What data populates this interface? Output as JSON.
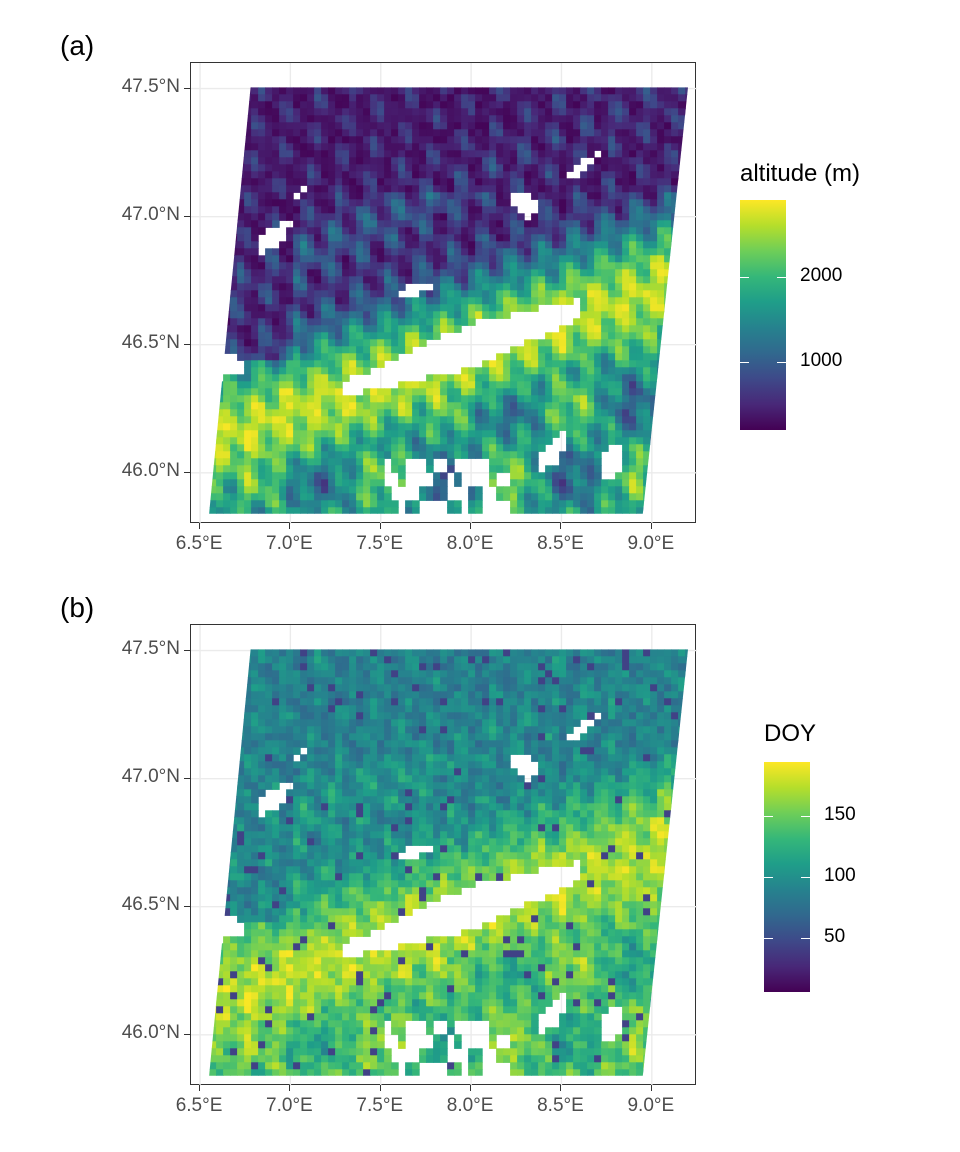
{
  "figure": {
    "panels": [
      {
        "label": "(a)",
        "legend": {
          "title": "altitude (m)",
          "colormap": "viridis",
          "range": [
            200,
            2900
          ],
          "ticks": [
            {
              "value": 1000,
              "label": "1000"
            },
            {
              "value": 2000,
              "label": "2000"
            }
          ]
        }
      },
      {
        "label": "(b)",
        "legend": {
          "title": "DOY",
          "colormap": "viridis",
          "range": [
            5,
            195
          ],
          "ticks": [
            {
              "value": 50,
              "label": "50"
            },
            {
              "value": 100,
              "label": "100"
            },
            {
              "value": 150,
              "label": "150"
            }
          ]
        }
      }
    ],
    "x_axis": {
      "range": [
        6.45,
        9.25
      ],
      "ticks": [
        {
          "value": 6.5,
          "label": "6.5°E"
        },
        {
          "value": 7.0,
          "label": "7.0°E"
        },
        {
          "value": 7.5,
          "label": "7.5°E"
        },
        {
          "value": 8.0,
          "label": "8.0°E"
        },
        {
          "value": 8.5,
          "label": "8.5°E"
        },
        {
          "value": 9.0,
          "label": "9.0°E"
        }
      ]
    },
    "y_axis": {
      "range": [
        45.8,
        47.6
      ],
      "ticks": [
        {
          "value": 46.0,
          "label": "46.0°N"
        },
        {
          "value": 46.5,
          "label": "46.5°N"
        },
        {
          "value": 47.0,
          "label": "47.0°N"
        },
        {
          "value": 47.5,
          "label": "47.5°N"
        }
      ]
    },
    "colors": {
      "grid": "#ebebeb",
      "panel_border": "#333333",
      "viridis": [
        "#440154",
        "#482878",
        "#3e4989",
        "#31688e",
        "#26828e",
        "#1f9e89",
        "#35b779",
        "#6ece58",
        "#b5de2b",
        "#fde725"
      ]
    }
  }
}
